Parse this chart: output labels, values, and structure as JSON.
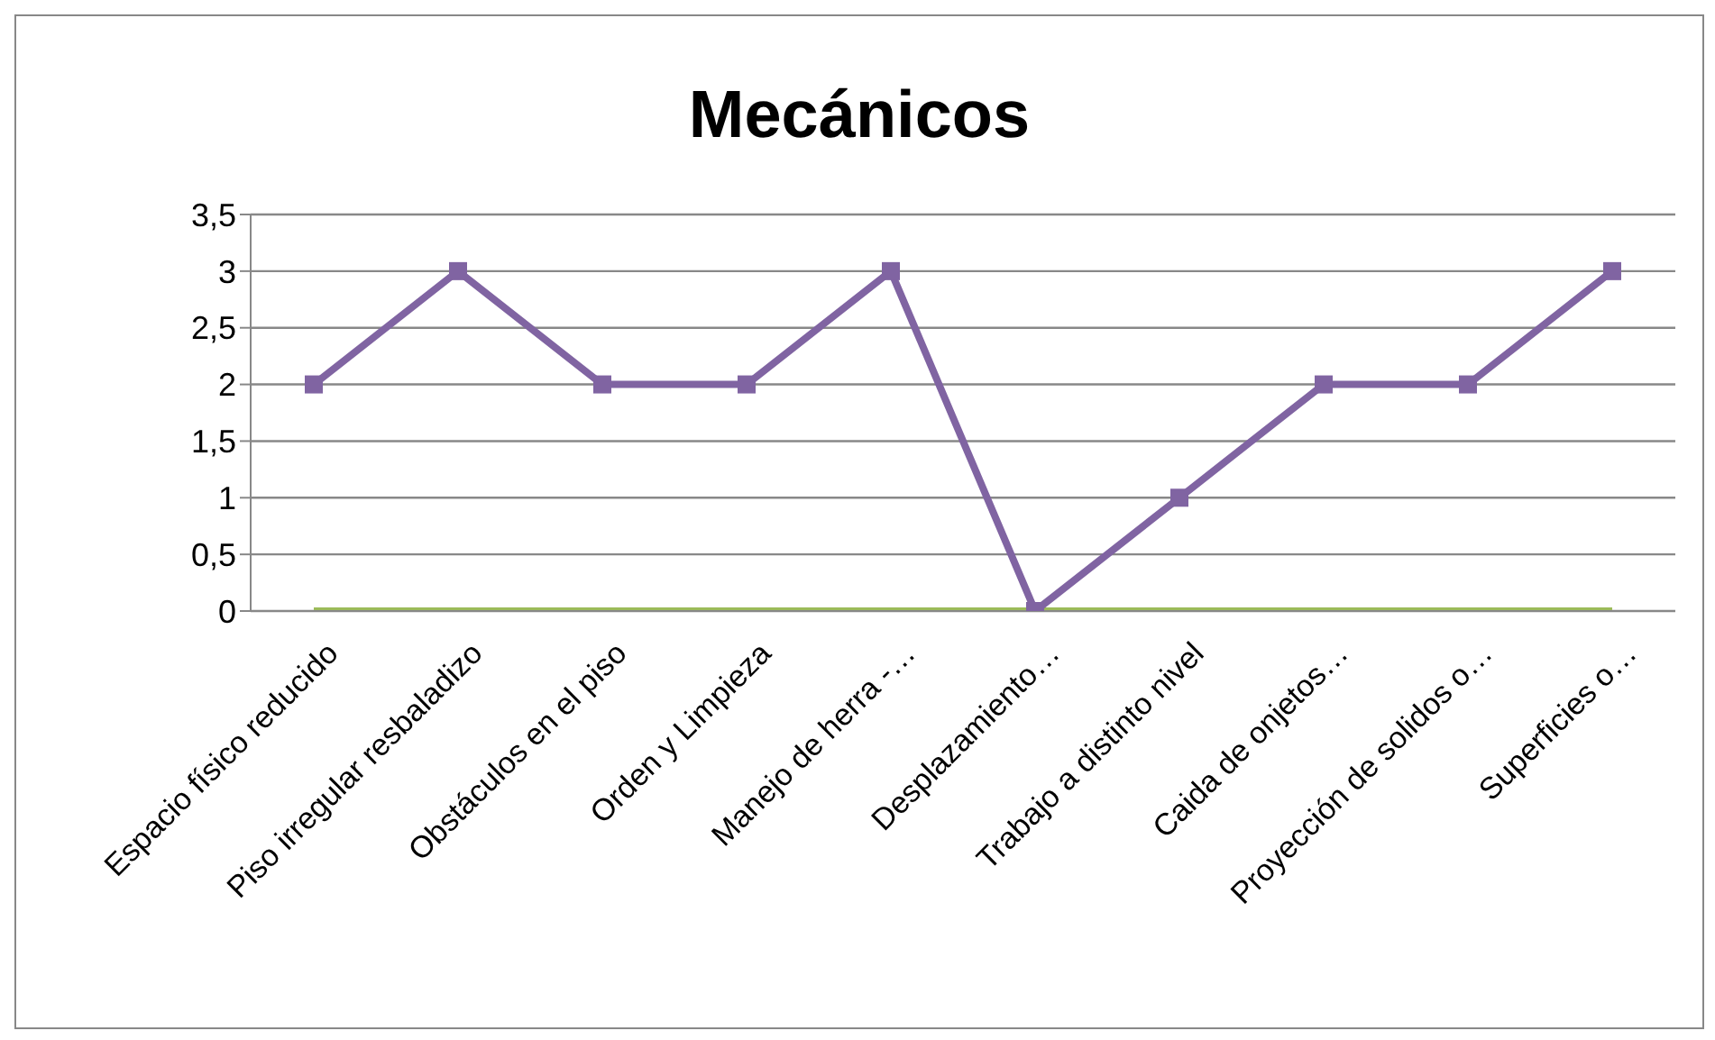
{
  "chart_data": {
    "type": "line",
    "title": "Mecánicos",
    "categories": [
      "Espacio físico reducido",
      "Piso irregular resbaladizo",
      "Obstáculos en el piso",
      "Orden y Limpieza",
      "Manejo de herra -…",
      "Desplazamiento…",
      "Trabajo a distinto nivel",
      "Caida de onjetos…",
      "Proyección de solidos o…",
      "Superficies o…"
    ],
    "series": [
      {
        "color": "#8064a2",
        "marker": "square",
        "values": [
          2,
          3,
          2,
          2,
          3,
          0,
          1,
          2,
          2,
          3
        ]
      },
      {
        "color": "#9bbb59",
        "marker": "none",
        "values": [
          0,
          0,
          0,
          0,
          0,
          0,
          0,
          0,
          0,
          0
        ]
      }
    ],
    "ylim": [
      0,
      3.5
    ],
    "yticks": [
      0,
      {
        "value": 0.5,
        "label": "0,5"
      },
      1,
      {
        "value": 1.5,
        "label": "1,5"
      },
      2,
      {
        "value": 2.5,
        "label": "2,5"
      },
      3,
      {
        "value": 3.5,
        "label": "3,5"
      }
    ],
    "grid": "y",
    "legend": false,
    "line_style": "solid"
  }
}
